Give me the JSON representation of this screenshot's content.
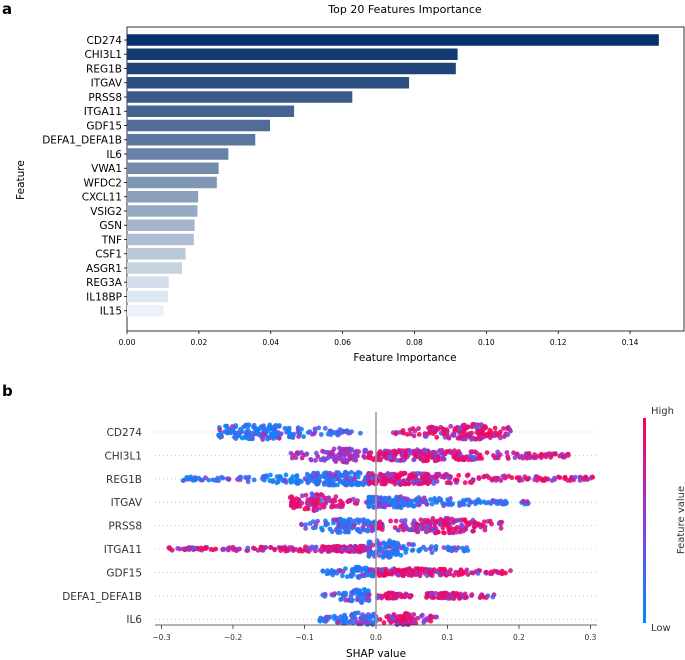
{
  "chart_data": [
    {
      "panel": "a",
      "type": "bar",
      "orientation": "horizontal",
      "title": "Top 20 Features Importance",
      "xlabel": "Feature Importance",
      "ylabel": "Feature",
      "xlim": [
        0,
        0.155
      ],
      "xticks": [
        "0.00",
        "0.02",
        "0.04",
        "0.06",
        "0.08",
        "0.10",
        "0.12",
        "0.14"
      ],
      "categories": [
        "CD274",
        "CHI3L1",
        "REG1B",
        "ITGAV",
        "PRSS8",
        "ITGA11",
        "GDF15",
        "DEFA1_DEFA1B",
        "IL6",
        "VWA1",
        "WFDC2",
        "CXCL11",
        "VSIG2",
        "GSN",
        "TNF",
        "CSF1",
        "ASGR1",
        "REG3A",
        "IL18BP",
        "IL15"
      ],
      "values": [
        0.148,
        0.092,
        0.0915,
        0.0785,
        0.0627,
        0.0465,
        0.0398,
        0.0357,
        0.0282,
        0.0255,
        0.025,
        0.0198,
        0.0196,
        0.0188,
        0.0186,
        0.0163,
        0.0153,
        0.0116,
        0.0114,
        0.0102
      ],
      "colormap": [
        "#f7fbff",
        "#08306b"
      ]
    },
    {
      "panel": "b",
      "type": "scatter",
      "subtype": "beeswarm",
      "xlabel": "SHAP value",
      "xlim": [
        -0.32,
        0.32
      ],
      "xticks": [
        "−0.3",
        "−0.2",
        "−0.1",
        "0.0",
        "0.1",
        "0.2",
        "0.3"
      ],
      "categories": [
        "CD274",
        "CHI3L1",
        "REG1B",
        "ITGAV",
        "PRSS8",
        "ITGA11",
        "GDF15",
        "DEFA1_DEFA1B",
        "IL6"
      ],
      "colorbar": {
        "label": "Feature value",
        "high": "High",
        "low": "Low",
        "low_color": "#008afb",
        "high_color": "#ff0052"
      },
      "features": [
        {
          "name": "CD274",
          "clusters": [
            {
              "min": -0.22,
              "max": -0.02,
              "center": -0.165,
              "peak": 8,
              "color": "low"
            },
            {
              "min": 0.02,
              "max": 0.19,
              "center": 0.135,
              "peak": 8,
              "color": "high"
            }
          ]
        },
        {
          "name": "CHI3L1",
          "clusters": [
            {
              "min": -0.12,
              "max": -0.01,
              "center": -0.05,
              "peak": 8,
              "color": "mixed"
            },
            {
              "min": -0.01,
              "max": 0.27,
              "center": 0.06,
              "peak": 6,
              "color": "high"
            }
          ]
        },
        {
          "name": "REG1B",
          "clusters": [
            {
              "min": -0.27,
              "max": -0.01,
              "center": -0.04,
              "peak": 7,
              "color": "low"
            },
            {
              "min": -0.01,
              "max": 0.305,
              "center": 0.03,
              "peak": 6,
              "color": "high"
            }
          ]
        },
        {
          "name": "ITGAV",
          "clusters": [
            {
              "min": -0.12,
              "max": -0.01,
              "center": -0.09,
              "peak": 9,
              "color": "high"
            },
            {
              "min": -0.01,
              "max": 0.215,
              "center": 0.02,
              "peak": 6,
              "color": "low"
            }
          ]
        },
        {
          "name": "PRSS8",
          "clusters": [
            {
              "min": -0.105,
              "max": 0.01,
              "center": -0.04,
              "peak": 8,
              "color": "low"
            },
            {
              "min": 0.0,
              "max": 0.185,
              "center": 0.09,
              "peak": 8,
              "color": "high"
            }
          ]
        },
        {
          "name": "ITGA11",
          "clusters": [
            {
              "min": -0.29,
              "max": -0.01,
              "center": -0.02,
              "peak": 3,
              "color": "high"
            },
            {
              "min": -0.01,
              "max": 0.13,
              "center": 0.01,
              "peak": 9,
              "color": "low"
            }
          ]
        },
        {
          "name": "GDF15",
          "clusters": [
            {
              "min": -0.075,
              "max": 0.0,
              "center": -0.02,
              "peak": 6,
              "color": "low"
            },
            {
              "min": 0.0,
              "max": 0.19,
              "center": 0.05,
              "peak": 4,
              "color": "high"
            }
          ]
        },
        {
          "name": "DEFA1_DEFA1B",
          "clusters": [
            {
              "min": -0.075,
              "max": -0.01,
              "center": -0.02,
              "peak": 7,
              "color": "low"
            },
            {
              "min": 0.0,
              "max": 0.05,
              "center": 0.02,
              "peak": 3,
              "color": "high"
            },
            {
              "min": 0.07,
              "max": 0.165,
              "center": 0.1,
              "peak": 3,
              "color": "high"
            }
          ]
        },
        {
          "name": "IL6",
          "clusters": [
            {
              "min": -0.08,
              "max": 0.0,
              "center": -0.02,
              "peak": 7,
              "color": "low"
            },
            {
              "min": 0.0,
              "max": 0.085,
              "center": 0.04,
              "peak": 6,
              "color": "high"
            }
          ]
        }
      ]
    }
  ],
  "labels": {
    "panel_a": "a",
    "panel_b": "b"
  }
}
